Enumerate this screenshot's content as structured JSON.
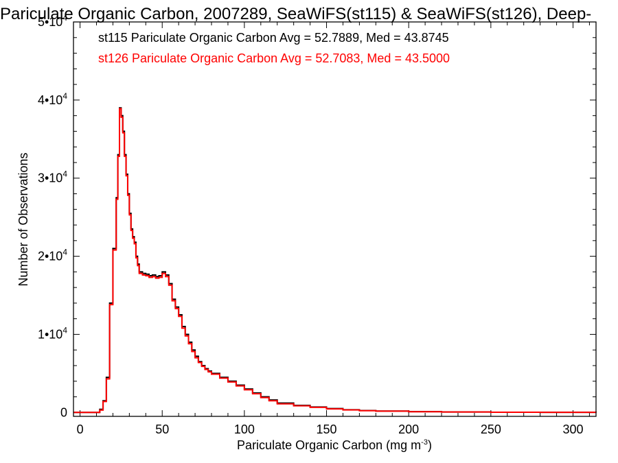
{
  "chart_data": {
    "type": "line",
    "title": "Pariculate Organic Carbon, 2007289, SeaWiFS(st115) & SeaWiFS(st126), Deep-",
    "xlabel": "Pariculate Organic Carbon (mg m",
    "xlabel_sup": "-3",
    "xlabel_close": ")",
    "ylabel": "Number of Observations",
    "xlim": [
      -4,
      314
    ],
    "ylim": [
      -500,
      50000
    ],
    "x_ticks": [
      0,
      50,
      100,
      150,
      200,
      250,
      300
    ],
    "x_tick_labels": [
      "0",
      "50",
      "100",
      "150",
      "200",
      "250",
      "300"
    ],
    "y_ticks": [
      0,
      10000,
      20000,
      30000,
      40000,
      50000
    ],
    "y_tick_labels": [
      {
        "base": "0",
        "exp": ""
      },
      {
        "base": "1•10",
        "exp": "4"
      },
      {
        "base": "2•10",
        "exp": "4"
      },
      {
        "base": "3•10",
        "exp": "4"
      },
      {
        "base": "4•10",
        "exp": "4"
      },
      {
        "base": "5•10",
        "exp": "4"
      }
    ],
    "grid": false,
    "legend": "top-left",
    "annotations": [
      {
        "text": "st115 Pariculate Organic Carbon Avg = 52.7889, Med = 43.8745",
        "color": "#000000"
      },
      {
        "text": "st126 Pariculate Organic Carbon Avg = 52.7083, Med = 43.5000",
        "color": "#ff0000"
      }
    ],
    "series": [
      {
        "name": "st115",
        "color": "#000000",
        "step": true,
        "x": [
          -4,
          10,
          12,
          14,
          16,
          18,
          20,
          22,
          23,
          24,
          25,
          26,
          27,
          28,
          29,
          30,
          31,
          32,
          33,
          34,
          35,
          36,
          38,
          40,
          42,
          44,
          46,
          48,
          50,
          52,
          54,
          56,
          58,
          60,
          62,
          64,
          66,
          68,
          70,
          72,
          74,
          76,
          78,
          80,
          85,
          90,
          95,
          100,
          105,
          110,
          115,
          120,
          130,
          140,
          150,
          160,
          170,
          180,
          200,
          220,
          250,
          280,
          314
        ],
        "y": [
          0,
          0,
          400,
          1500,
          4500,
          14000,
          21000,
          27500,
          33000,
          39000,
          38000,
          36000,
          33000,
          30500,
          28000,
          25500,
          23500,
          22500,
          21800,
          20000,
          19000,
          18000,
          17800,
          17700,
          17500,
          17600,
          17400,
          17500,
          18000,
          17600,
          16500,
          14500,
          13500,
          12500,
          11000,
          10000,
          9000,
          8000,
          7200,
          6500,
          6000,
          5600,
          5300,
          5000,
          4500,
          4000,
          3500,
          3000,
          2500,
          2000,
          1600,
          1200,
          900,
          700,
          500,
          350,
          250,
          180,
          100,
          60,
          30,
          15,
          0
        ]
      },
      {
        "name": "st126",
        "color": "#ff0000",
        "step": true,
        "x": [
          -4,
          10,
          12,
          14,
          16,
          18,
          20,
          22,
          23,
          24,
          25,
          26,
          27,
          28,
          29,
          30,
          31,
          32,
          33,
          34,
          35,
          36,
          38,
          40,
          42,
          44,
          46,
          48,
          50,
          52,
          54,
          56,
          58,
          60,
          62,
          64,
          66,
          68,
          70,
          72,
          74,
          76,
          78,
          80,
          85,
          90,
          95,
          100,
          105,
          110,
          115,
          120,
          130,
          140,
          150,
          160,
          170,
          180,
          200,
          220,
          250,
          280,
          314
        ],
        "y": [
          0,
          0,
          300,
          1400,
          4300,
          13800,
          20800,
          27300,
          32800,
          38900,
          37800,
          35800,
          32800,
          30300,
          27800,
          25300,
          23300,
          22300,
          21600,
          19800,
          18800,
          17800,
          17600,
          17500,
          17300,
          17400,
          17200,
          17300,
          17800,
          17400,
          16300,
          14300,
          13300,
          12300,
          10800,
          9800,
          8800,
          7800,
          7000,
          6400,
          5900,
          5500,
          5200,
          4900,
          4400,
          3900,
          3400,
          2900,
          2400,
          1900,
          1500,
          1100,
          850,
          650,
          450,
          320,
          230,
          170,
          90,
          55,
          28,
          12,
          0
        ]
      }
    ]
  }
}
